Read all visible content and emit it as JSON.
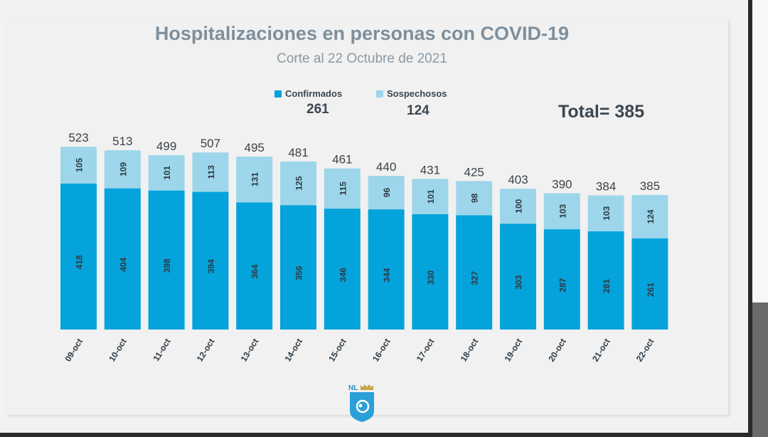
{
  "chart_data": {
    "type": "bar",
    "stacked": true,
    "title": "Hospitalizaciones en personas con COVID-19",
    "subtitle": "Corte al 22 Octubre de 2021",
    "categories": [
      "09-oct",
      "10-oct",
      "11-oct",
      "12-oct",
      "13-oct",
      "14-oct",
      "15-oct",
      "16-oct",
      "17-oct",
      "18-oct",
      "19-oct",
      "20-oct",
      "21-oct",
      "22-oct"
    ],
    "series": [
      {
        "name": "Confirmados",
        "color": "#05a3db",
        "values": [
          418,
          404,
          398,
          394,
          364,
          356,
          346,
          344,
          330,
          327,
          303,
          287,
          281,
          261
        ]
      },
      {
        "name": "Sospechosos",
        "color": "#9dd6ea",
        "values": [
          105,
          109,
          101,
          113,
          131,
          125,
          115,
          96,
          101,
          98,
          100,
          103,
          103,
          124
        ]
      }
    ],
    "totals": [
      523,
      513,
      499,
      507,
      495,
      481,
      461,
      440,
      431,
      425,
      403,
      390,
      384,
      385
    ],
    "legend": {
      "placement": "top",
      "confirmados_value": "261",
      "sospechosos_value": "124"
    },
    "total_label": "Total= 385",
    "grid": false,
    "logo_text": "NL"
  }
}
